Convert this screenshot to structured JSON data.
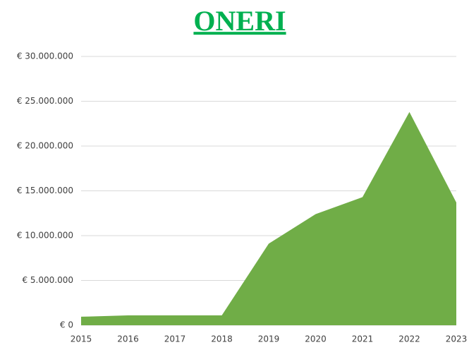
{
  "chart_data": {
    "type": "area",
    "title": "ONERI",
    "categories": [
      "2015",
      "2016",
      "2017",
      "2018",
      "2019",
      "2020",
      "2021",
      "2022",
      "2023"
    ],
    "values": [
      950000,
      1100000,
      1100000,
      1100000,
      9100000,
      12400000,
      14300000,
      23800000,
      13700000
    ],
    "color": "#70ad47",
    "ylim": [
      0,
      30000000
    ],
    "yticks": [
      {
        "value": 0,
        "label": "€ 0"
      },
      {
        "value": 5000000,
        "label": "€ 5.000.000"
      },
      {
        "value": 10000000,
        "label": "€ 10.000.000"
      },
      {
        "value": 15000000,
        "label": "€ 15.000.000"
      },
      {
        "value": 20000000,
        "label": "€ 20.000.000"
      },
      {
        "value": 25000000,
        "label": "€ 25.000.000"
      },
      {
        "value": 30000000,
        "label": "€ 30.000.000"
      }
    ],
    "grid": true
  }
}
